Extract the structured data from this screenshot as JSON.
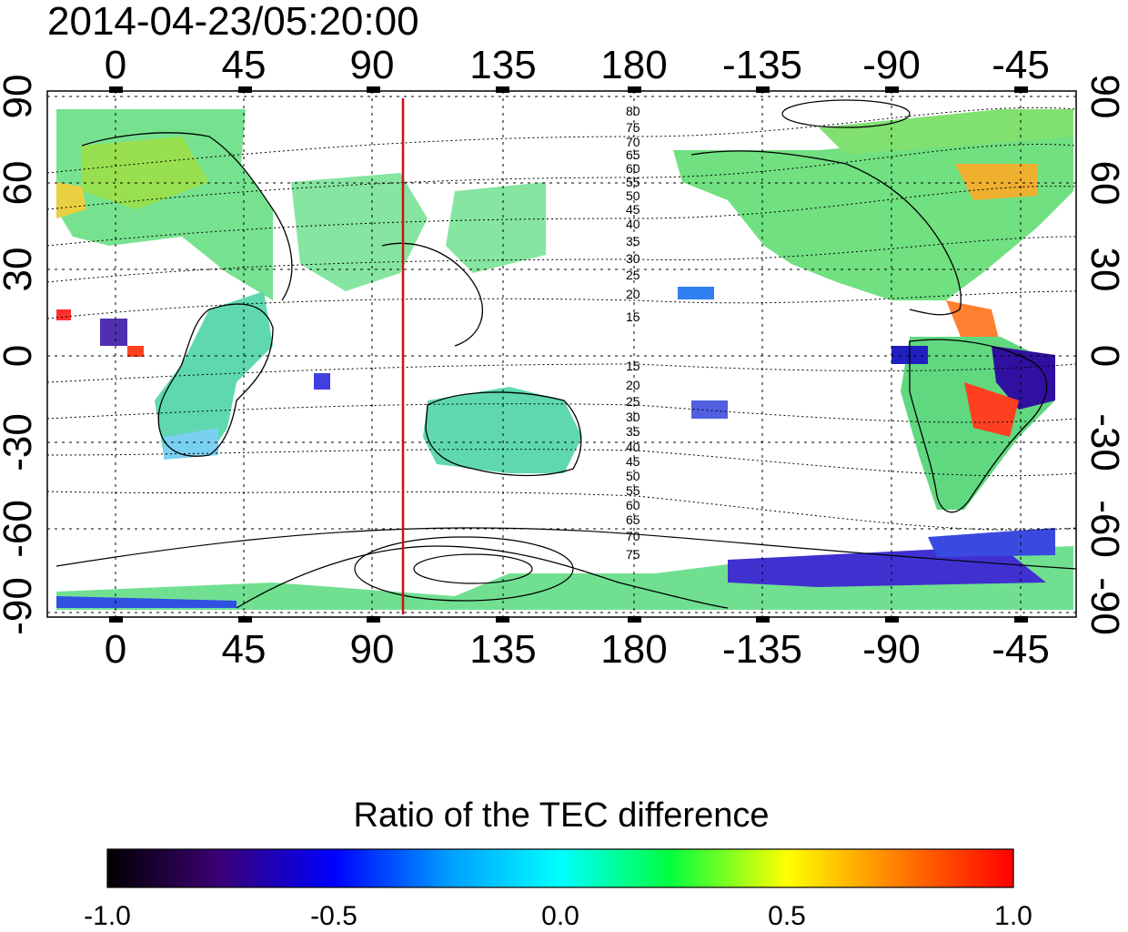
{
  "title": "2014-04-23/05:20:00",
  "top_lon_ticks": [
    "0",
    "45",
    "90",
    "135",
    "180",
    "-135",
    "-90",
    "-45"
  ],
  "bottom_lon_ticks": [
    "0",
    "45",
    "90",
    "135",
    "180",
    "-135",
    "-90",
    "-45"
  ],
  "left_lat_ticks": [
    "90",
    "60",
    "30",
    "0",
    "-30",
    "-60",
    "-90"
  ],
  "right_lat_ticks": [
    "90",
    "60",
    "30",
    "0",
    "-30",
    "-60",
    "-90"
  ],
  "contour_labels_north": [
    "80",
    "75",
    "70",
    "65",
    "60",
    "55",
    "50",
    "45",
    "40",
    "35",
    "30",
    "25",
    "20",
    "15"
  ],
  "contour_labels_south": [
    "15",
    "20",
    "25",
    "30",
    "35",
    "40",
    "45",
    "50",
    "55",
    "60",
    "65",
    "70",
    "75"
  ],
  "colorbar": {
    "title": "Ratio of the TEC difference",
    "ticks": [
      "-1.0",
      "-0.5",
      "0.0",
      "0.5",
      "1.0"
    ],
    "range": [
      -1.0,
      1.0
    ]
  },
  "terminator_longitude": 100,
  "colors": {
    "terminator": "#d01010",
    "frame": "#000000"
  }
}
